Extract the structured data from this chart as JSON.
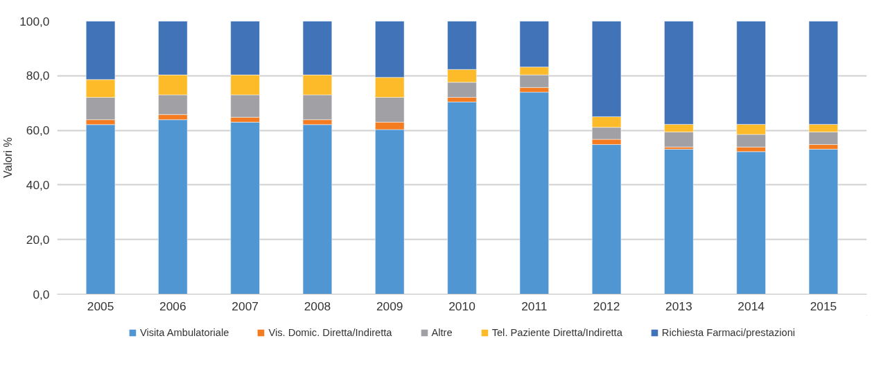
{
  "chart_data": {
    "type": "bar",
    "stacked": true,
    "ylabel": "Valori %",
    "categories": [
      "2005",
      "2006",
      "2007",
      "2008",
      "2009",
      "2010",
      "2011",
      "2012",
      "2013",
      "2014",
      "2015"
    ],
    "series": [
      {
        "name": "Visita Ambulatoriale",
        "color": "#5096d2",
        "values": [
          62.1,
          63.9,
          63.0,
          62.1,
          60.3,
          70.4,
          74.0,
          54.8,
          53.1,
          52.2,
          53.1
        ]
      },
      {
        "name": "Vis. Domic. Diretta/Indiretta",
        "color": "#f47b20",
        "values": [
          1.8,
          1.9,
          1.8,
          1.8,
          2.7,
          1.7,
          1.7,
          1.9,
          0.8,
          1.7,
          1.7
        ]
      },
      {
        "name": "Altre",
        "color": "#a0a0a5",
        "values": [
          8.2,
          7.2,
          8.2,
          9.1,
          9.1,
          5.5,
          4.6,
          4.4,
          5.5,
          4.6,
          4.6
        ]
      },
      {
        "name": "Tel. Paziente Diretta/Indiretta",
        "color": "#fdbb2a",
        "values": [
          6.5,
          7.3,
          7.3,
          7.3,
          7.3,
          4.7,
          2.9,
          3.9,
          2.8,
          3.7,
          2.8
        ]
      },
      {
        "name": "Richiesta Farmaci/prestazioni",
        "color": "#4173b9",
        "values": [
          21.4,
          19.7,
          19.7,
          19.7,
          20.6,
          17.7,
          16.8,
          35.0,
          37.8,
          37.8,
          37.8
        ]
      }
    ],
    "ylim": [
      0,
      100
    ],
    "yticks": [
      {
        "value": 0,
        "label": "0,0"
      },
      {
        "value": 20,
        "label": "20,0"
      },
      {
        "value": 40,
        "label": "40,0"
      },
      {
        "value": 60,
        "label": "60,0"
      },
      {
        "value": 80,
        "label": "80,0"
      },
      {
        "value": 100,
        "label": "100,0"
      }
    ],
    "grid": "y",
    "legend": "bottom"
  }
}
